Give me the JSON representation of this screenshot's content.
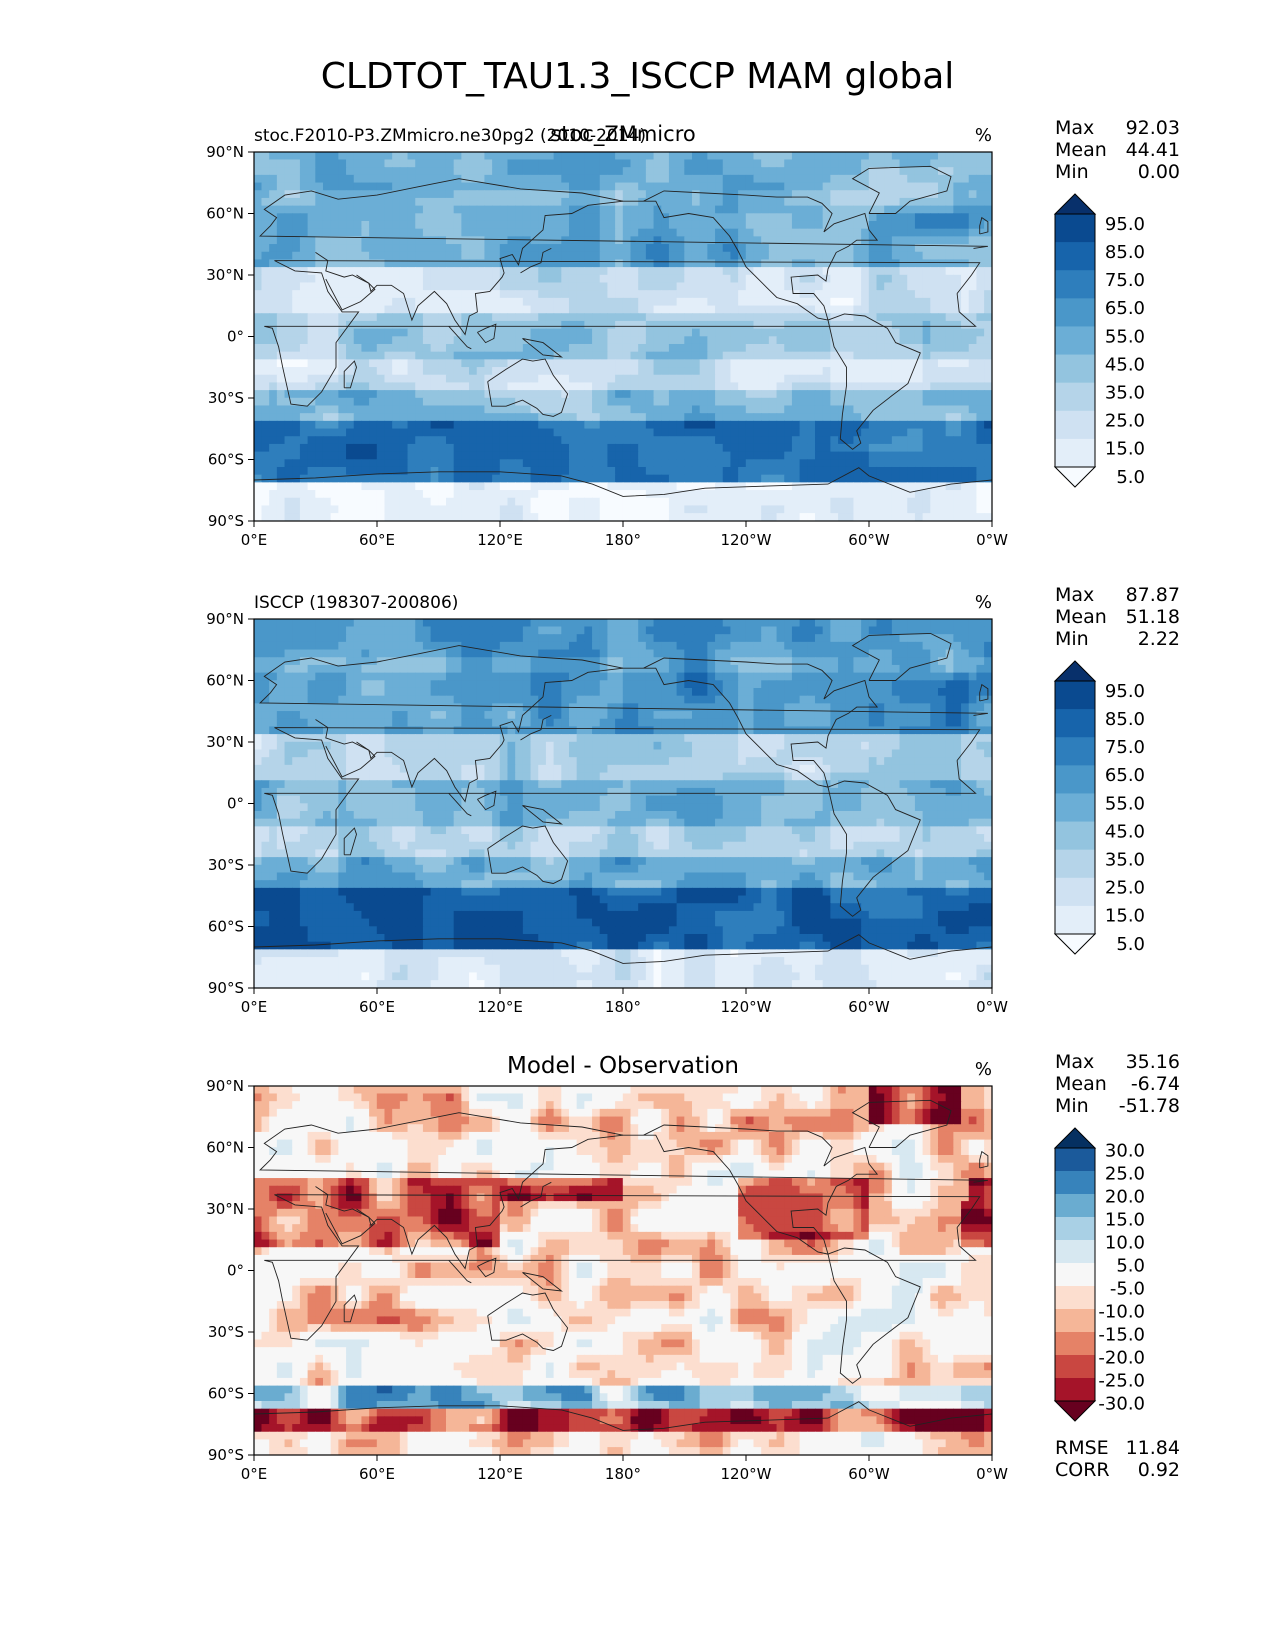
{
  "figure": {
    "title": "CLDTOT_TAU1.3_ISCCP MAM global"
  },
  "colors": {
    "land_outline": "#222222",
    "abs_scale": [
      "#f7fbff",
      "#e3eef9",
      "#cfe1f2",
      "#b5d4e9",
      "#93c4df",
      "#6baed6",
      "#4a97c9",
      "#2e7ebc",
      "#1764ab",
      "#0a4a90",
      "#08306b"
    ],
    "diff_scale": [
      "#67001f",
      "#a51429",
      "#c94741",
      "#e58267",
      "#f5b698",
      "#fcdecf",
      "#f7f7f7",
      "#d7e8f1",
      "#a9d0e5",
      "#6aacd0",
      "#3783bb",
      "#1b5a9b",
      "#053061"
    ]
  },
  "chart_data": [
    {
      "type": "heatmap",
      "panel": "model",
      "left_title": "stoc.F2010-P3.ZMmicro.ne30pg2 (2010-2014)",
      "center_title": "stoc_ZMmicro",
      "units": "%",
      "stats": {
        "max_label": "Max",
        "max": "92.03",
        "mean_label": "Mean",
        "mean": "44.41",
        "min_label": "Min",
        "min": "0.00"
      },
      "colorbar_levels": [
        "95.0",
        "85.0",
        "75.0",
        "65.0",
        "55.0",
        "45.0",
        "35.0",
        "25.0",
        "15.0",
        "5.0"
      ],
      "xticks": [
        "0°E",
        "60°E",
        "120°E",
        "180°",
        "120°W",
        "60°W",
        "0°W"
      ],
      "yticks": [
        "90°N",
        "60°N",
        "30°N",
        "0°",
        "30°S",
        "60°S",
        "90°S"
      ],
      "xlim": [
        0,
        360
      ],
      "ylim": [
        -90,
        90
      ]
    },
    {
      "type": "heatmap",
      "panel": "obs",
      "left_title": "ISCCP (198307-200806)",
      "center_title": "",
      "units": "%",
      "stats": {
        "max_label": "Max",
        "max": "87.87",
        "mean_label": "Mean",
        "mean": "51.18",
        "min_label": "Min",
        "min": "2.22"
      },
      "colorbar_levels": [
        "95.0",
        "85.0",
        "75.0",
        "65.0",
        "55.0",
        "45.0",
        "35.0",
        "25.0",
        "15.0",
        "5.0"
      ],
      "xticks": [
        "0°E",
        "60°E",
        "120°E",
        "180°",
        "120°W",
        "60°W",
        "0°W"
      ],
      "yticks": [
        "90°N",
        "60°N",
        "30°N",
        "0°",
        "30°S",
        "60°S",
        "90°S"
      ],
      "xlim": [
        0,
        360
      ],
      "ylim": [
        -90,
        90
      ]
    },
    {
      "type": "heatmap",
      "panel": "diff",
      "left_title": "",
      "center_title": "Model - Observation",
      "units": "%",
      "stats": {
        "max_label": "Max",
        "max": "35.16",
        "mean_label": "Mean",
        "mean": "-6.74",
        "min_label": "Min",
        "min": "-51.78"
      },
      "colorbar_levels": [
        "30.0",
        "25.0",
        "20.0",
        "15.0",
        "10.0",
        "5.0",
        "-5.0",
        "-10.0",
        "-15.0",
        "-20.0",
        "-25.0",
        "-30.0"
      ],
      "extra_stats": {
        "rmse_label": "RMSE",
        "rmse": "11.84",
        "corr_label": "CORR",
        "corr": "0.92"
      },
      "xticks": [
        "0°E",
        "60°E",
        "120°E",
        "180°",
        "120°W",
        "60°W",
        "0°W"
      ],
      "yticks": [
        "90°N",
        "60°N",
        "30°N",
        "0°",
        "30°S",
        "60°S",
        "90°S"
      ],
      "xlim": [
        0,
        360
      ],
      "ylim": [
        -90,
        90
      ]
    }
  ]
}
